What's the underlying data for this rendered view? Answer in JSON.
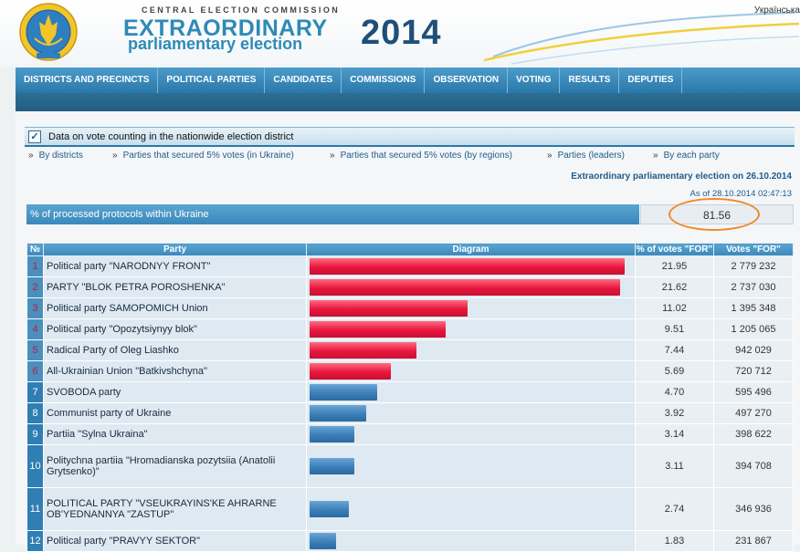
{
  "header": {
    "cec": "CENTRAL ELECTION COMMISSION",
    "title_line1": "EXTRAORDINARY",
    "title_line2": "parliamentary election",
    "year": "2014",
    "lang": "Українська"
  },
  "nav": [
    "DISTRICTS AND PRECINCTS",
    "POLITICAL PARTIES",
    "CANDIDATES",
    "COMMISSIONS",
    "OBSERVATION",
    "VOTING",
    "RESULTS",
    "DEPUTIES"
  ],
  "section": {
    "title": "Data on vote counting in the nationwide election district",
    "links": [
      "By districts",
      "Parties that secured 5% votes (in Ukraine)",
      "Parties that secured 5% votes (by regions)",
      "Parties (leaders)",
      "By each party"
    ],
    "election_date": "Extraordinary parliamentary election on 26.10.2014",
    "as_of": "As of 28.10.2014 02:47:13",
    "pct_label": "% of processed protocols within Ukraine",
    "pct_value": "81.56"
  },
  "table": {
    "headers": [
      "№",
      "Party",
      "Diagram",
      "% of votes \"FOR\"",
      "Votes \"FOR\""
    ],
    "rows": [
      {
        "n": "1",
        "party": "Political party \"NARODNYY FRONT\"",
        "pct": "21.95",
        "votes": "2 779 232",
        "share": 21.95,
        "color": "red"
      },
      {
        "n": "2",
        "party": "PARTY \"BLOK PETRA POROSHENKA\"",
        "pct": "21.62",
        "votes": "2 737 030",
        "share": 21.62,
        "color": "red"
      },
      {
        "n": "3",
        "party": "Political party SAMOPOMICH Union",
        "pct": "11.02",
        "votes": "1 395 348",
        "share": 11.02,
        "color": "red"
      },
      {
        "n": "4",
        "party": "Political party \"Opozytsiynyy blok\"",
        "pct": "9.51",
        "votes": "1 205 065",
        "share": 9.51,
        "color": "red"
      },
      {
        "n": "5",
        "party": "Radical Party of Oleg Liashko",
        "pct": "7.44",
        "votes": "942 029",
        "share": 7.44,
        "color": "red"
      },
      {
        "n": "6",
        "party": "All-Ukrainian Union \"Batkivshchyna\"",
        "pct": "5.69",
        "votes": "720 712",
        "share": 5.69,
        "color": "red"
      },
      {
        "n": "7",
        "party": "SVOBODA party",
        "pct": "4.70",
        "votes": "595 496",
        "share": 4.7,
        "color": "blue"
      },
      {
        "n": "8",
        "party": "Communist party of Ukraine",
        "pct": "3.92",
        "votes": "497 270",
        "share": 3.92,
        "color": "blue"
      },
      {
        "n": "9",
        "party": "Partiia \"Sylna Ukraina\"",
        "pct": "3.14",
        "votes": "398 622",
        "share": 3.14,
        "color": "blue"
      },
      {
        "n": "10",
        "party": "Politychna partiia \"Hromadianska pozytsiia (Anatolii Grytsenko)\"",
        "pct": "3.11",
        "votes": "394 708",
        "share": 3.11,
        "color": "blue"
      },
      {
        "n": "11",
        "party": "POLITICAL PARTY \"VSEUKRAYINS'KE AHRARNE OB'YEDNANNYA \"ZASTUP\"",
        "pct": "2.74",
        "votes": "346 936",
        "share": 2.74,
        "color": "blue"
      },
      {
        "n": "12",
        "party": "Political party \"PRAVYY SEKTOR\"",
        "pct": "1.83",
        "votes": "231 867",
        "share": 1.83,
        "color": "blue"
      }
    ]
  },
  "colors": {
    "accent": "#2a78a9",
    "bar_red": "#e8163e",
    "bar_blue": "#3c7fb8",
    "highlight": "#f0892a"
  }
}
